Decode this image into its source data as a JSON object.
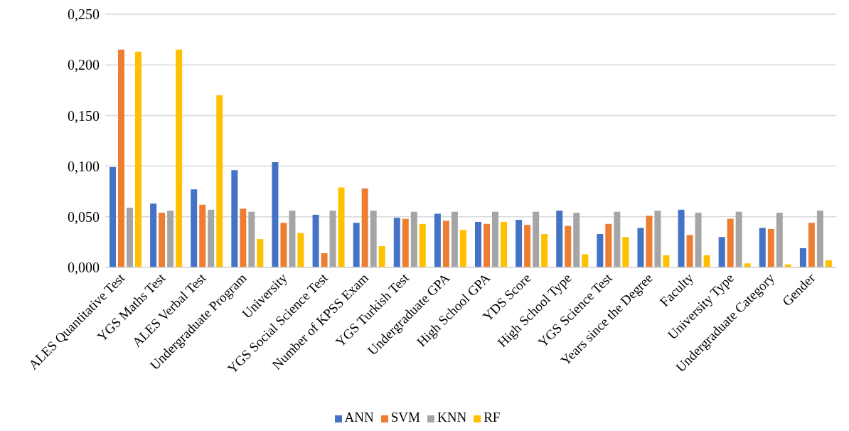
{
  "chart_data": {
    "type": "bar",
    "categories": [
      "ALES Quantitative Test",
      "YGS Maths Test",
      "ALES Verbal Test",
      "Undergraduate Program",
      "University",
      "YGS Social Science Test",
      "Number of KPSS Exam",
      "YGS Turkish Test",
      "Undergraduate GPA",
      "High School GPA",
      "YDS Score",
      "High School Type",
      "YGS Science Test",
      "Years since the Degree",
      "Faculty",
      "University Type",
      "Undergraduate Category",
      "Gender"
    ],
    "series": [
      {
        "name": "ANN",
        "color": "#4472c4",
        "values": [
          0.099,
          0.063,
          0.077,
          0.096,
          0.104,
          0.052,
          0.044,
          0.049,
          0.053,
          0.045,
          0.047,
          0.056,
          0.033,
          0.039,
          0.057,
          0.03,
          0.039,
          0.019
        ]
      },
      {
        "name": "SVM",
        "color": "#ed7d31",
        "values": [
          0.215,
          0.054,
          0.062,
          0.058,
          0.044,
          0.014,
          0.078,
          0.048,
          0.046,
          0.043,
          0.042,
          0.041,
          0.043,
          0.051,
          0.032,
          0.048,
          0.038,
          0.044
        ]
      },
      {
        "name": "KNN",
        "color": "#a5a5a5",
        "values": [
          0.059,
          0.056,
          0.057,
          0.055,
          0.056,
          0.056,
          0.056,
          0.055,
          0.055,
          0.055,
          0.055,
          0.054,
          0.055,
          0.056,
          0.054,
          0.055,
          0.054,
          0.056
        ]
      },
      {
        "name": "RF",
        "color": "#ffc000",
        "values": [
          0.213,
          0.215,
          0.17,
          0.028,
          0.034,
          0.079,
          0.021,
          0.043,
          0.037,
          0.045,
          0.033,
          0.013,
          0.03,
          0.012,
          0.012,
          0.004,
          0.003,
          0.007
        ]
      }
    ],
    "ylim": [
      0,
      0.25
    ],
    "yticks": [
      {
        "value": 0,
        "label": "0,000"
      },
      {
        "value": 0.05,
        "label": "0,050"
      },
      {
        "value": 0.1,
        "label": "0,100"
      },
      {
        "value": 0.15,
        "label": "0,150"
      },
      {
        "value": 0.2,
        "label": "0,200"
      },
      {
        "value": 0.25,
        "label": "0,250"
      }
    ],
    "grid": "y",
    "legend": "bottom"
  }
}
